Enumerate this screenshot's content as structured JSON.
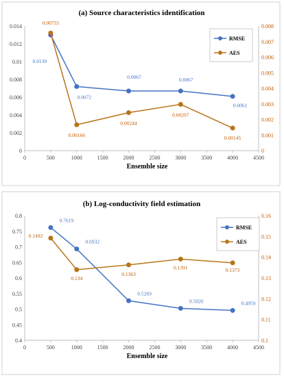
{
  "chart_data": [
    {
      "type": "line",
      "title": "(a) Source characteristics identification",
      "xlabel": "Ensemble size",
      "x": [
        500,
        1000,
        2000,
        3000,
        4000
      ],
      "xlim": [
        0,
        4500
      ],
      "xticks": [
        0,
        500,
        1000,
        1500,
        2000,
        2500,
        3000,
        3500,
        4000,
        4500
      ],
      "y_left": {
        "lim": [
          0,
          0.014
        ],
        "ticks": [
          "0",
          "0.002",
          "0.004",
          "0.006",
          "0.008",
          "0.01",
          "0.012",
          "0.014"
        ]
      },
      "y_right": {
        "lim": [
          0,
          0.008
        ],
        "ticks": [
          "0",
          "0.001",
          "0.002",
          "0.003",
          "0.004",
          "0.005",
          "0.006",
          "0.007",
          "0.008"
        ]
      },
      "grid": false,
      "legend_position": "top-right",
      "series": [
        {
          "name": "RMSE",
          "axis": "left",
          "color": "#4472C4",
          "values": [
            0.013,
            0.0072,
            0.0067,
            0.0067,
            0.0061
          ],
          "labels": [
            "0.0130",
            "0.0072",
            "0.0067",
            "0.0067",
            "0.0061"
          ]
        },
        {
          "name": "AES",
          "axis": "right",
          "color": "#B8741A",
          "values": [
            0.00755,
            0.00166,
            0.00244,
            0.00297,
            0.00145
          ],
          "labels": [
            "0.00755",
            "0.00166",
            "0.00244",
            "0.00297",
            "0.00145"
          ]
        }
      ]
    },
    {
      "type": "line",
      "title": "(b) Log-conductivity field estimation",
      "xlabel": "Ensemble size",
      "x": [
        500,
        1000,
        2000,
        3000,
        4000
      ],
      "xlim": [
        0,
        4500
      ],
      "xticks": [
        0,
        500,
        1000,
        1500,
        2000,
        2500,
        3000,
        3500,
        4000,
        4500
      ],
      "y_left": {
        "lim": [
          0.4,
          0.8
        ],
        "ticks": [
          "0.4",
          "0.45",
          "0.5",
          "0.55",
          "0.6",
          "0.65",
          "0.7",
          "0.75",
          "0.8"
        ]
      },
      "y_right": {
        "lim": [
          0.1,
          0.16
        ],
        "ticks": [
          "0.1",
          "0.11",
          "0.12",
          "0.13",
          "0.14",
          "0.15",
          "0.16"
        ]
      },
      "grid": false,
      "legend_position": "top-right",
      "series": [
        {
          "name": "RMSE",
          "axis": "left",
          "color": "#4472C4",
          "values": [
            0.7619,
            0.6932,
            0.5269,
            0.5026,
            0.4959
          ],
          "labels": [
            "0.7619",
            "0.6932",
            "0.5269",
            "0.5026",
            "0.4959"
          ]
        },
        {
          "name": "AES",
          "axis": "right",
          "color": "#B8741A",
          "values": [
            0.1492,
            0.134,
            0.1363,
            0.1391,
            0.1373
          ],
          "labels": [
            "0.1492",
            "0.134",
            "0.1363",
            "0.1391",
            "0.1373"
          ]
        }
      ]
    }
  ]
}
